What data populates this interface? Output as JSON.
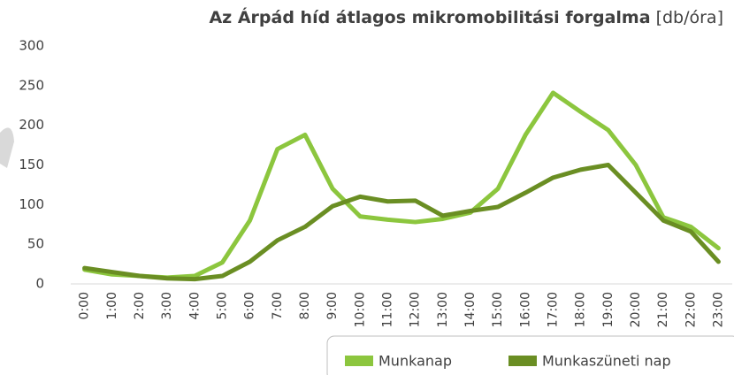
{
  "chart_data": {
    "type": "line",
    "title": "Az Árpád híd átlagos mikromobilitási forgalma",
    "unit": "[db/óra]",
    "categories": [
      "0:00",
      "1:00",
      "2:00",
      "3:00",
      "4:00",
      "5:00",
      "6:00",
      "7:00",
      "8:00",
      "9:00",
      "10:00",
      "11:00",
      "12:00",
      "13:00",
      "14:00",
      "15:00",
      "16:00",
      "17:00",
      "18:00",
      "19:00",
      "20:00",
      "21:00",
      "22:00",
      "23:00"
    ],
    "series": [
      {
        "name": "Munkanap",
        "color": "#8cc63e",
        "values": [
          18,
          12,
          10,
          8,
          10,
          27,
          80,
          170,
          188,
          120,
          85,
          81,
          78,
          82,
          90,
          120,
          188,
          241,
          217,
          194,
          150,
          84,
          72,
          45
        ]
      },
      {
        "name": "Munkaszüneti nap",
        "color": "#6a8e23",
        "values": [
          20,
          15,
          10,
          7,
          6,
          10,
          28,
          55,
          72,
          98,
          110,
          104,
          105,
          86,
          92,
          97,
          115,
          134,
          144,
          150,
          115,
          80,
          66,
          28
        ]
      }
    ],
    "ylim": [
      0,
      300
    ],
    "yticks": [
      0,
      50,
      100,
      150,
      200,
      250,
      300
    ],
    "grid": false,
    "legend": "bottom-right"
  }
}
